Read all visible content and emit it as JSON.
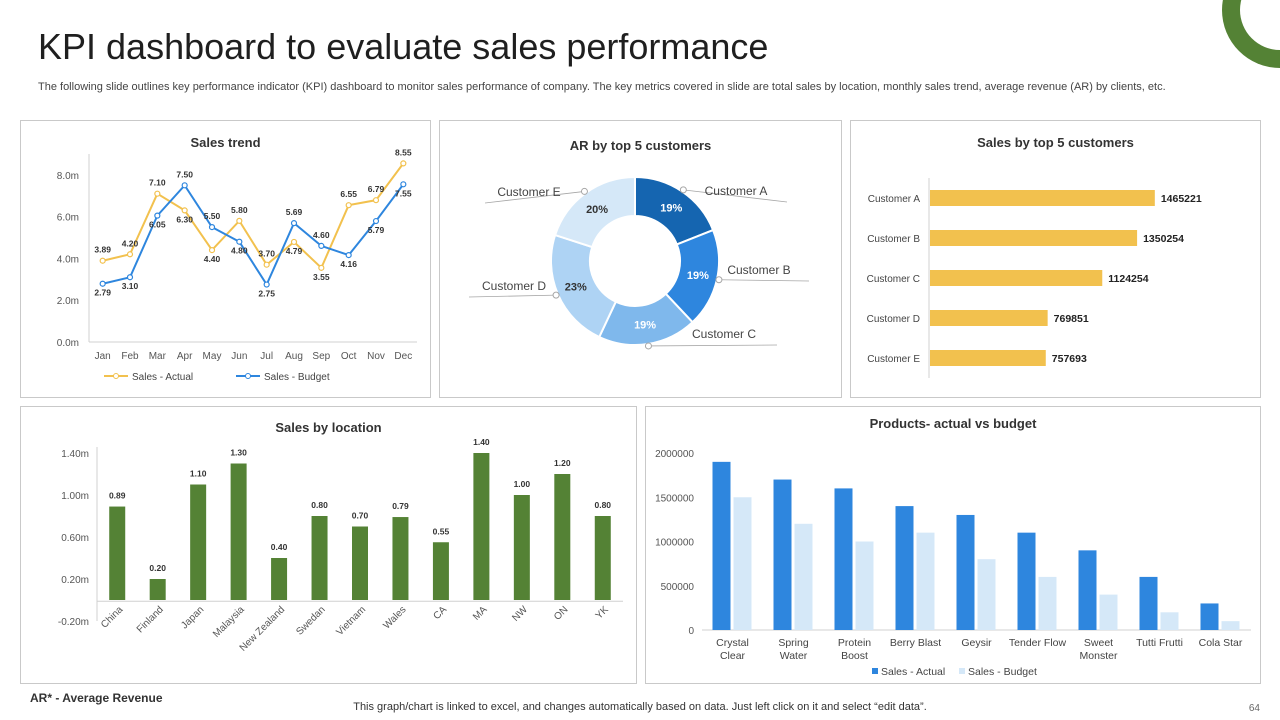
{
  "page": {
    "title": "KPI dashboard to evaluate sales performance",
    "subtitle": "The following slide outlines key performance indicator (KPI) dashboard to monitor sales performance of company. The key metrics covered in slide are total sales by location, monthly sales trend, average revenue (AR) by clients, etc.",
    "footnote": "AR* - Average Revenue",
    "footer": "This graph/chart is linked to excel,  and changes automatically based on data. Just left click on it and select “edit data”.",
    "page_number": "64"
  },
  "colors": {
    "accent_green": "#548235",
    "bar_green": "#548235",
    "gold": "#F2C14E",
    "blue": "#2E86DE",
    "light_blue": "#D5E8F8",
    "line_actual": "#F2C14E",
    "line_budget": "#2E86DE",
    "dark_blue": "#1565B0"
  },
  "panels": {
    "sales_trend_title": "Sales trend",
    "ar_title": "AR by top 5 customers",
    "top5_title": "Sales by top 5 customers",
    "location_title": "Sales by location",
    "products_title": "Products- actual vs budget"
  },
  "chart_data": [
    {
      "id": "sales_trend",
      "type": "line",
      "title": "Sales trend",
      "categories": [
        "Jan",
        "Feb",
        "Mar",
        "Apr",
        "May",
        "Jun",
        "Jul",
        "Aug",
        "Sep",
        "Oct",
        "Nov",
        "Dec"
      ],
      "series": [
        {
          "name": "Sales - Actual",
          "color": "#F2C14E",
          "values": [
            3.89,
            4.2,
            7.1,
            6.3,
            4.4,
            5.8,
            3.7,
            4.79,
            3.55,
            6.55,
            6.79,
            8.55
          ],
          "labels": [
            "3.89",
            "4.20",
            "7.10",
            "6.30",
            "4.40",
            "5.80",
            "3.70",
            "4.79",
            "3.55",
            "6.55",
            "6.79",
            "8.55"
          ]
        },
        {
          "name": "Sales - Budget",
          "color": "#2E86DE",
          "values": [
            2.79,
            3.1,
            6.05,
            7.5,
            5.5,
            4.8,
            2.75,
            5.69,
            4.6,
            4.16,
            5.79,
            7.55
          ],
          "labels": [
            "2.79",
            "3.10",
            "6.05",
            "7.50",
            "5.50",
            "4.80",
            "2.75",
            "5.69",
            "4.60",
            "4.16",
            "5.79",
            "7.55"
          ]
        }
      ],
      "yticks": [
        "0.0m",
        "2.0m",
        "4.0m",
        "6.0m",
        "8.0m"
      ],
      "ylim": [
        0,
        9
      ],
      "legend": [
        "Sales - Actual",
        "Sales - Budget"
      ]
    },
    {
      "id": "ar_donut",
      "type": "pie",
      "title": "AR by top 5 customers",
      "categories": [
        "Customer A",
        "Customer B",
        "Customer C",
        "Customer D",
        "Customer E"
      ],
      "values": [
        19,
        19,
        19,
        23,
        20
      ],
      "labels": [
        "19%",
        "19%",
        "19%",
        "23%",
        "20%"
      ],
      "colors": [
        "#1565B0",
        "#2E86DE",
        "#7FB8EC",
        "#AED3F4",
        "#D5E8F8"
      ]
    },
    {
      "id": "top5_customers",
      "type": "bar",
      "orientation": "horizontal",
      "title": "Sales by top 5 customers",
      "categories": [
        "Customer A",
        "Customer B",
        "Customer C",
        "Customer D",
        "Customer E"
      ],
      "values": [
        1465221,
        1350254,
        1124254,
        769851,
        757693
      ],
      "labels": [
        "1465221",
        "1350254",
        "1124254",
        "769851",
        "757693"
      ],
      "xlim": [
        0,
        1700000
      ]
    },
    {
      "id": "sales_by_location",
      "type": "bar",
      "title": "Sales by location",
      "categories": [
        "China",
        "Finland",
        "Japan",
        "Malaysia",
        "New Zealand",
        "Swedan",
        "Vietnam",
        "Wales",
        "CA",
        "MA",
        "NW",
        "ON",
        "YK"
      ],
      "values": [
        0.89,
        0.2,
        1.1,
        1.3,
        0.4,
        0.8,
        0.7,
        0.79,
        0.55,
        1.4,
        1.0,
        1.2,
        0.8
      ],
      "labels": [
        "0.89",
        "0.20",
        "1.10",
        "1.30",
        "0.40",
        "0.80",
        "0.70",
        "0.79",
        "0.55",
        "1.40",
        "1.00",
        "1.20",
        "0.80"
      ],
      "yticks": [
        "-0.20m",
        "0.20m",
        "0.60m",
        "1.00m",
        "1.40m"
      ],
      "ytick_values": [
        -0.2,
        0.2,
        0.6,
        1.0,
        1.4
      ],
      "ylim": [
        -0.2,
        1.4
      ]
    },
    {
      "id": "products",
      "type": "bar",
      "title": "Products- actual vs budget",
      "categories": [
        "Crystal Clear",
        "Spring Water",
        "Protein Boost",
        "Berry Blast",
        "Geysir",
        "Tender Flow",
        "Sweet Monster",
        "Tutti Frutti",
        "Cola Star"
      ],
      "category_lines": [
        [
          "Crystal",
          "Clear"
        ],
        [
          "Spring",
          "Water"
        ],
        [
          "Protein",
          "Boost"
        ],
        [
          "Berry Blast"
        ],
        [
          "Geysir"
        ],
        [
          "Tender Flow"
        ],
        [
          "Sweet",
          "Monster"
        ],
        [
          "Tutti Frutti"
        ],
        [
          "Cola Star"
        ]
      ],
      "series": [
        {
          "name": "Sales - Actual",
          "color": "#2E86DE",
          "values": [
            1900000,
            1700000,
            1600000,
            1400000,
            1300000,
            1100000,
            900000,
            600000,
            300000
          ]
        },
        {
          "name": "Sales - Budget",
          "color": "#D5E8F8",
          "values": [
            1500000,
            1200000,
            1000000,
            1100000,
            800000,
            600000,
            400000,
            200000,
            100000
          ]
        }
      ],
      "yticks": [
        "0",
        "500000",
        "1000000",
        "1500000",
        "2000000"
      ],
      "ytick_values": [
        0,
        500000,
        1000000,
        1500000,
        2000000
      ],
      "ylim": [
        0,
        2000000
      ],
      "legend": [
        "Sales - Actual",
        "Sales - Budget"
      ]
    }
  ]
}
